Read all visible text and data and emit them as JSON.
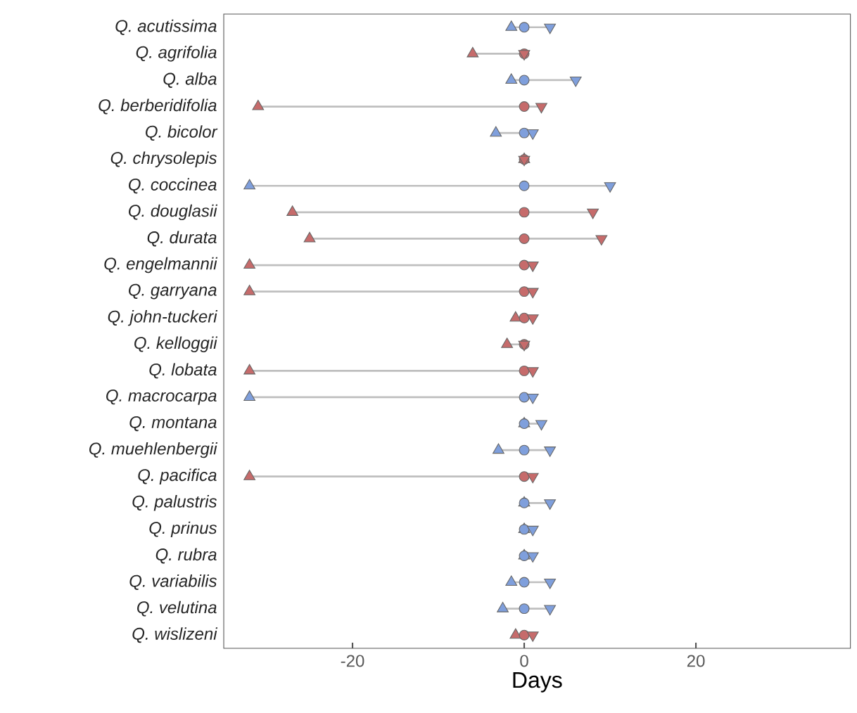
{
  "chart_data": {
    "type": "scatter",
    "orientation": "horizontal",
    "xlabel": "Days",
    "xlim": [
      -35,
      38
    ],
    "xticks": [
      -20,
      0,
      20
    ],
    "grid": false,
    "categories": [
      "Q. acutissima",
      "Q. agrifolia",
      "Q. alba",
      "Q. berberidifolia",
      "Q. bicolor",
      "Q. chrysolepis",
      "Q. coccinea",
      "Q. douglasii",
      "Q. durata",
      "Q. engelmannii",
      "Q. garryana",
      "Q. john-tuckeri",
      "Q. kelloggii",
      "Q. lobata",
      "Q. macrocarpa",
      "Q. montana",
      "Q. muehlenbergii",
      "Q. pacifica",
      "Q. palustris",
      "Q. prinus",
      "Q. rubra",
      "Q. variabilis",
      "Q. velutina",
      "Q. wislizeni"
    ],
    "series": [
      {
        "marker": "triangle",
        "values": [
          -1.5,
          -6,
          -1.5,
          -31,
          -3.3,
          0,
          -32,
          -27,
          -25,
          -32,
          -32,
          -1,
          -2,
          -32,
          -32,
          0,
          -3,
          -32,
          0,
          0,
          0,
          -1.5,
          -2.5,
          -1
        ],
        "colors": [
          "#7f9fdc",
          "#c66b6b",
          "#7f9fdc",
          "#c66b6b",
          "#7f9fdc",
          "#c66b6b",
          "#7f9fdc",
          "#c66b6b",
          "#c66b6b",
          "#c66b6b",
          "#c66b6b",
          "#c66b6b",
          "#c66b6b",
          "#c66b6b",
          "#7f9fdc",
          "#7f9fdc",
          "#7f9fdc",
          "#c66b6b",
          "#7f9fdc",
          "#7f9fdc",
          "#7f9fdc",
          "#7f9fdc",
          "#7f9fdc",
          "#c66b6b"
        ]
      },
      {
        "marker": "circle",
        "values": [
          0,
          0,
          0,
          0,
          0,
          0,
          0,
          0,
          0,
          0,
          0,
          0,
          0,
          0,
          0,
          0,
          0,
          0,
          0,
          0,
          0,
          0,
          0,
          0
        ],
        "colors": [
          "#7f9fdc",
          "#c66b6b",
          "#7f9fdc",
          "#c66b6b",
          "#7f9fdc",
          "#c66b6b",
          "#7f9fdc",
          "#c66b6b",
          "#c66b6b",
          "#c66b6b",
          "#c66b6b",
          "#c66b6b",
          "#c66b6b",
          "#c66b6b",
          "#7f9fdc",
          "#7f9fdc",
          "#7f9fdc",
          "#c66b6b",
          "#7f9fdc",
          "#7f9fdc",
          "#7f9fdc",
          "#7f9fdc",
          "#7f9fdc",
          "#c66b6b"
        ]
      },
      {
        "marker": "triangle-down",
        "values": [
          3,
          0,
          6,
          2,
          1,
          0,
          10,
          8,
          9,
          1,
          1,
          1,
          0,
          1,
          1,
          2,
          3,
          1,
          3,
          1,
          1,
          3,
          3,
          1
        ],
        "colors": [
          "#7f9fdc",
          "#c66b6b",
          "#7f9fdc",
          "#c66b6b",
          "#7f9fdc",
          "#c66b6b",
          "#7f9fdc",
          "#c66b6b",
          "#c66b6b",
          "#c66b6b",
          "#c66b6b",
          "#c66b6b",
          "#c66b6b",
          "#c66b6b",
          "#7f9fdc",
          "#7f9fdc",
          "#7f9fdc",
          "#c66b6b",
          "#7f9fdc",
          "#7f9fdc",
          "#7f9fdc",
          "#7f9fdc",
          "#7f9fdc",
          "#c66b6b"
        ]
      }
    ]
  }
}
